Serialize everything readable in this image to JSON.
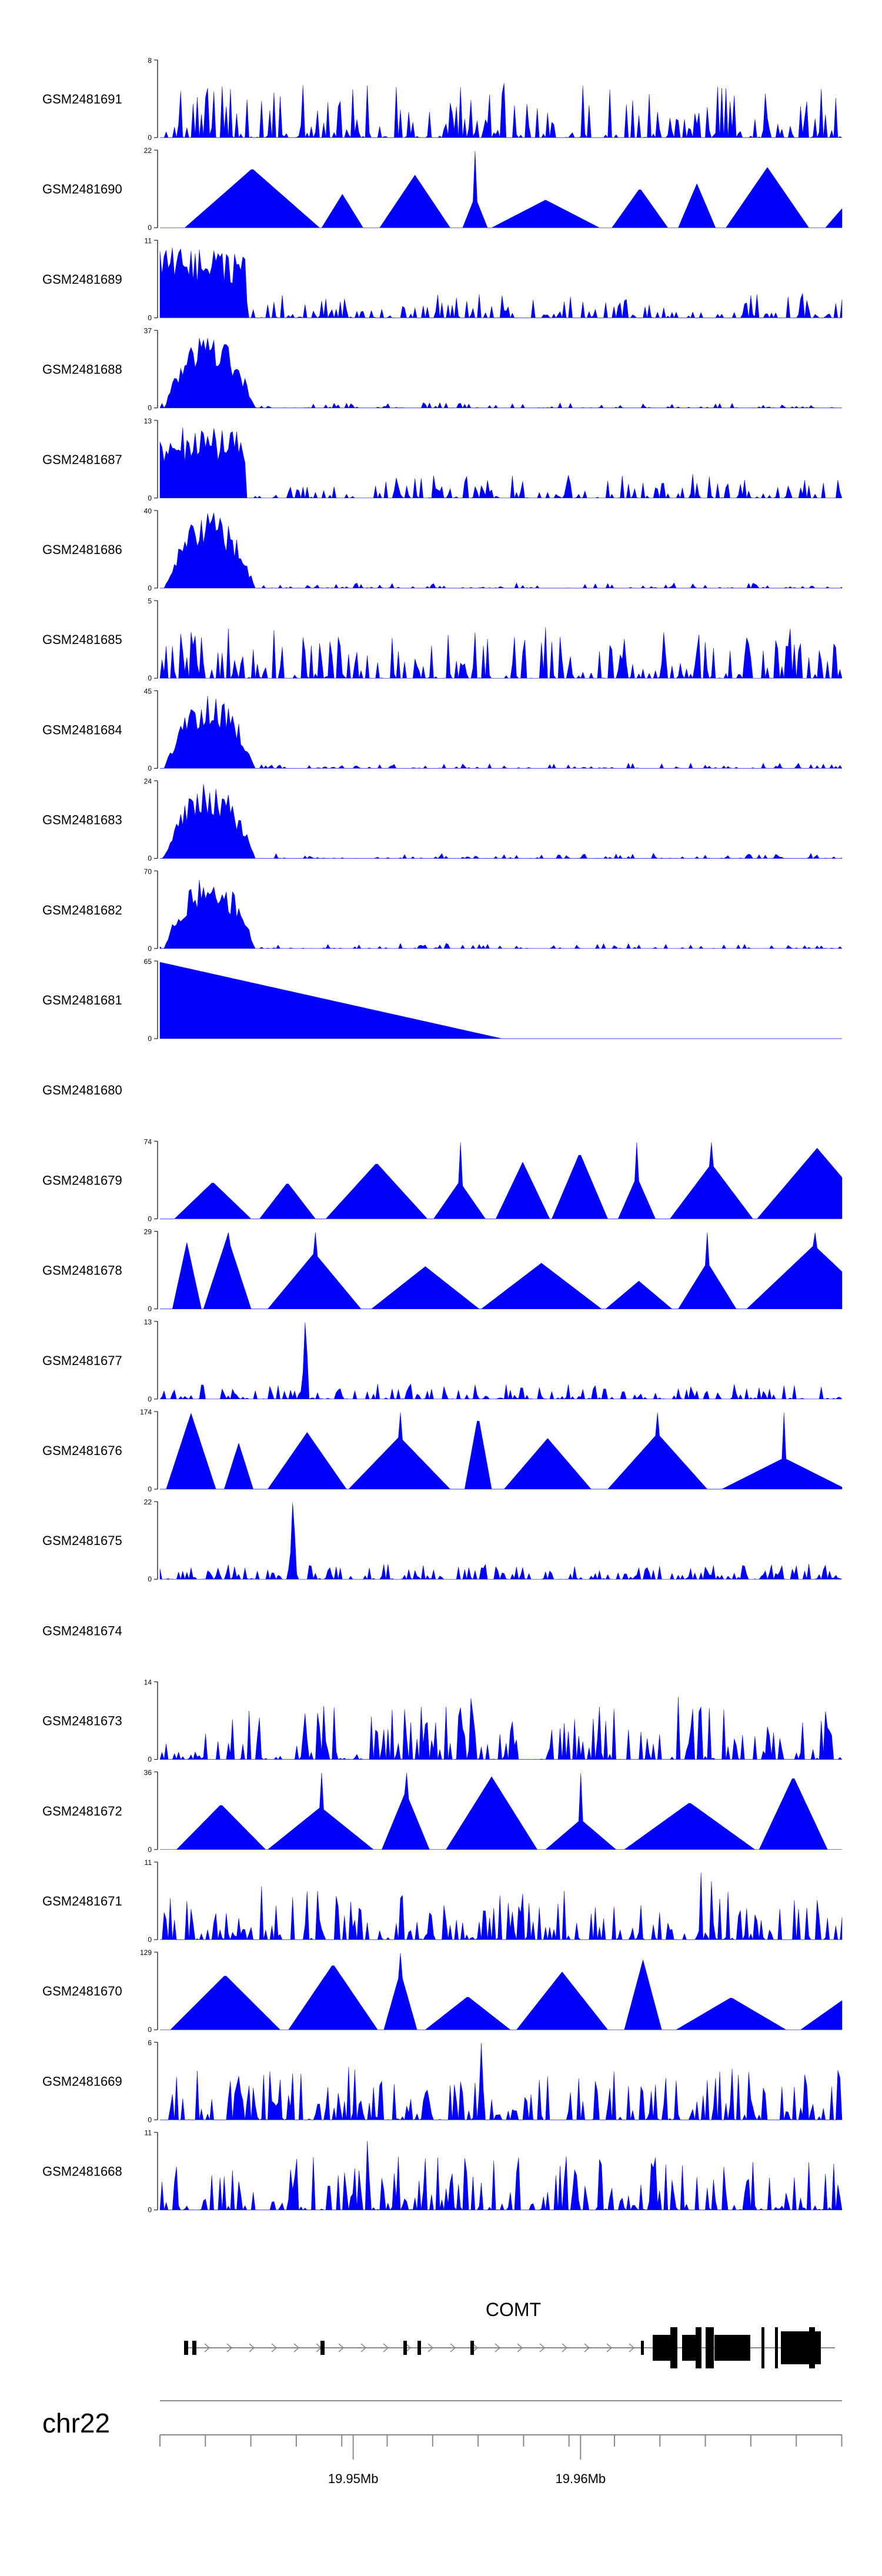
{
  "colors": {
    "coverage": "#0000ff",
    "axis": "#000000",
    "gene": "#000000",
    "intron": "#8a8a8a"
  },
  "chart_data": {
    "type": "area",
    "title": "",
    "xlabel": "",
    "xlim": [
      19.9415,
      19.9715
    ],
    "tracks": [
      {
        "name": "GSM2481691",
        "ymax": 8,
        "style": "noisy"
      },
      {
        "name": "GSM2481690",
        "ymax": 22,
        "style": "sparse"
      },
      {
        "name": "GSM2481689",
        "ymax": 11,
        "style": "earlypeak"
      },
      {
        "name": "GSM2481688",
        "ymax": 37,
        "style": "earlydome"
      },
      {
        "name": "GSM2481687",
        "ymax": 13,
        "style": "earlypeak"
      },
      {
        "name": "GSM2481686",
        "ymax": 40,
        "style": "earlydome"
      },
      {
        "name": "GSM2481685",
        "ymax": 5,
        "style": "noisy"
      },
      {
        "name": "GSM2481684",
        "ymax": 45,
        "style": "earlydome"
      },
      {
        "name": "GSM2481683",
        "ymax": 24,
        "style": "earlydome"
      },
      {
        "name": "GSM2481682",
        "ymax": 70,
        "style": "earlydome"
      },
      {
        "name": "GSM2481681",
        "ymax": 65,
        "style": "wedge"
      },
      {
        "name": "GSM2481680",
        "ymax": null,
        "style": "empty"
      },
      {
        "name": "GSM2481679",
        "ymax": 74,
        "style": "sparse"
      },
      {
        "name": "GSM2481678",
        "ymax": 29,
        "style": "sparse"
      },
      {
        "name": "GSM2481677",
        "ymax": 13,
        "style": "lowspike"
      },
      {
        "name": "GSM2481676",
        "ymax": 174,
        "style": "sparse"
      },
      {
        "name": "GSM2481675",
        "ymax": 22,
        "style": "lowspike"
      },
      {
        "name": "GSM2481674",
        "ymax": null,
        "style": "empty"
      },
      {
        "name": "GSM2481673",
        "ymax": 14,
        "style": "noisy"
      },
      {
        "name": "GSM2481672",
        "ymax": 36,
        "style": "sparse"
      },
      {
        "name": "GSM2481671",
        "ymax": 11,
        "style": "noisy"
      },
      {
        "name": "GSM2481670",
        "ymax": 129,
        "style": "sparse"
      },
      {
        "name": "GSM2481669",
        "ymax": 6,
        "style": "noisy"
      },
      {
        "name": "GSM2481668",
        "ymax": 11,
        "style": "noisy"
      }
    ],
    "y_min_label": "0",
    "gene": {
      "name": "COMT",
      "strand": "+"
    },
    "chromosome": "chr22",
    "axis_ticks": [
      {
        "pos": 19.95,
        "label": "19.95Mb"
      },
      {
        "pos": 19.96,
        "label": "19.96Mb"
      }
    ]
  }
}
